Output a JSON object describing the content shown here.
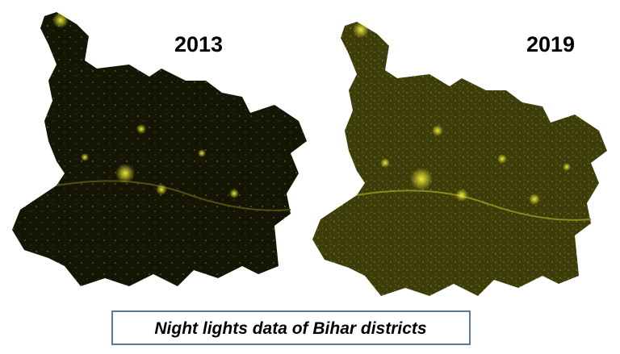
{
  "maps": [
    {
      "year": "2013"
    },
    {
      "year": "2019"
    }
  ],
  "caption": "Night lights data of Bihar districts"
}
